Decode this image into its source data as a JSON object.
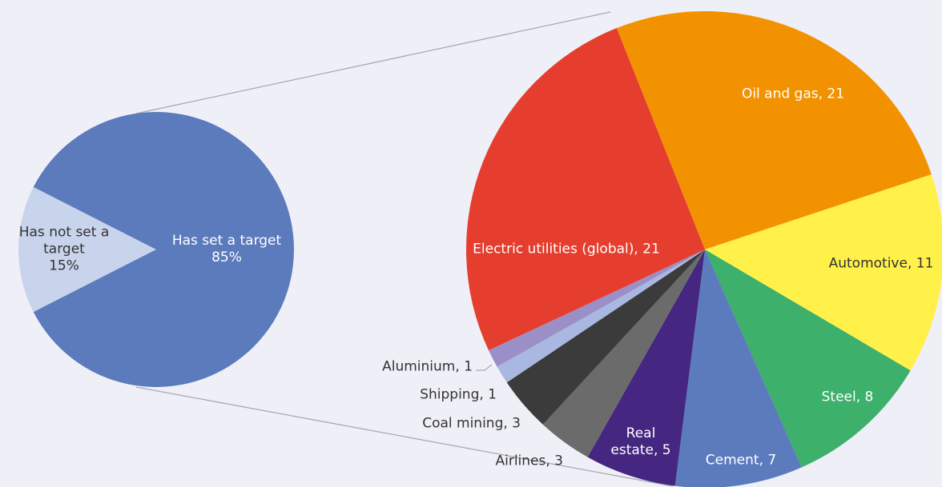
{
  "chart_data": [
    {
      "type": "pie",
      "categories": [
        "Has not set a target",
        "Has set a target"
      ],
      "values": [
        15,
        85
      ],
      "value_labels": [
        "15%",
        "85%"
      ],
      "colors": [
        "#c8d3ec",
        "#5b7bbd"
      ]
    },
    {
      "type": "pie",
      "values": [
        21,
        11,
        8,
        7,
        5,
        3,
        3,
        1,
        1,
        21
      ],
      "value_labels": [
        "Oil and gas, 21",
        "Automotive, 11",
        "Steel, 8",
        "Cement, 7",
        "Real estate, 5",
        "Airlines, 3",
        "Coal mining, 3",
        "Shipping, 1",
        "Aluminium, 1",
        "Electric utilities (global), 21"
      ],
      "colors": [
        "#f39200",
        "#fff04a",
        "#3db06b",
        "#5b7bbd",
        "#452680",
        "#6b6b6b",
        "#3b3b3b",
        "#a9b8e0",
        "#9b8fc8",
        "#e63e2e"
      ]
    }
  ]
}
